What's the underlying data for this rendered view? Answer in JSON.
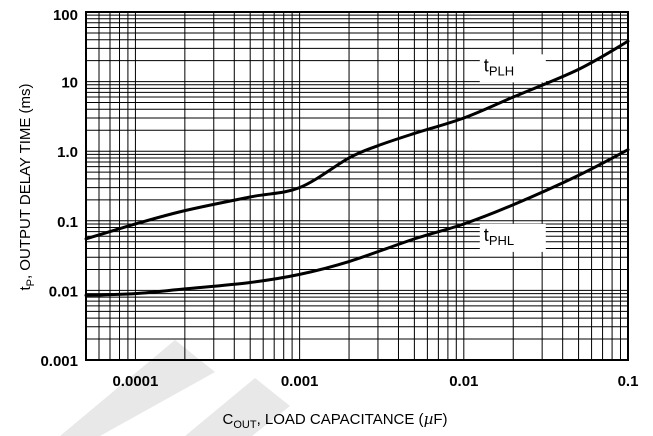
{
  "chart_data": {
    "type": "line",
    "x_scale": "log",
    "y_scale": "log",
    "xlim": [
      5e-05,
      0.1
    ],
    "ylim": [
      0.001,
      100
    ],
    "x_ticks": [
      {
        "value": 0.0001,
        "label": "0.0001"
      },
      {
        "value": 0.001,
        "label": "0.001"
      },
      {
        "value": 0.01,
        "label": "0.01"
      },
      {
        "value": 0.1,
        "label": "0.1"
      }
    ],
    "y_ticks": [
      {
        "value": 0.001,
        "label": "0.001"
      },
      {
        "value": 0.01,
        "label": "0.01"
      },
      {
        "value": 0.1,
        "label": "0.1"
      },
      {
        "value": 1,
        "label": "1.0"
      },
      {
        "value": 10,
        "label": "10"
      },
      {
        "value": 100,
        "label": "100"
      }
    ],
    "xlabel": {
      "main": "C",
      "sub": "OUT",
      "rest": ", LOAD CAPACITANCE (",
      "mu": "µ",
      "end": "F)"
    },
    "ylabel": {
      "main": "t",
      "sub": "P",
      "rest": ", OUTPUT DELAY TIME (ms)"
    },
    "grid": true,
    "watermark_color": "#e8e8e8",
    "series": [
      {
        "name": "tPLH",
        "label_main": "t",
        "label_sub": "PLH",
        "x": [
          5e-05,
          0.0001,
          0.0002,
          0.0005,
          0.001,
          0.002,
          0.003,
          0.005,
          0.01,
          0.02,
          0.05,
          0.1
        ],
        "y": [
          0.055,
          0.09,
          0.14,
          0.22,
          0.3,
          0.8,
          1.2,
          1.8,
          3.0,
          6.0,
          15,
          38
        ]
      },
      {
        "name": "tPHL",
        "label_main": "t",
        "label_sub": "PHL",
        "x": [
          5e-05,
          0.0001,
          0.0002,
          0.0005,
          0.001,
          0.002,
          0.005,
          0.01,
          0.02,
          0.05,
          0.1
        ],
        "y": [
          0.0085,
          0.009,
          0.0105,
          0.013,
          0.017,
          0.026,
          0.055,
          0.09,
          0.17,
          0.45,
          1.05
        ]
      }
    ]
  }
}
